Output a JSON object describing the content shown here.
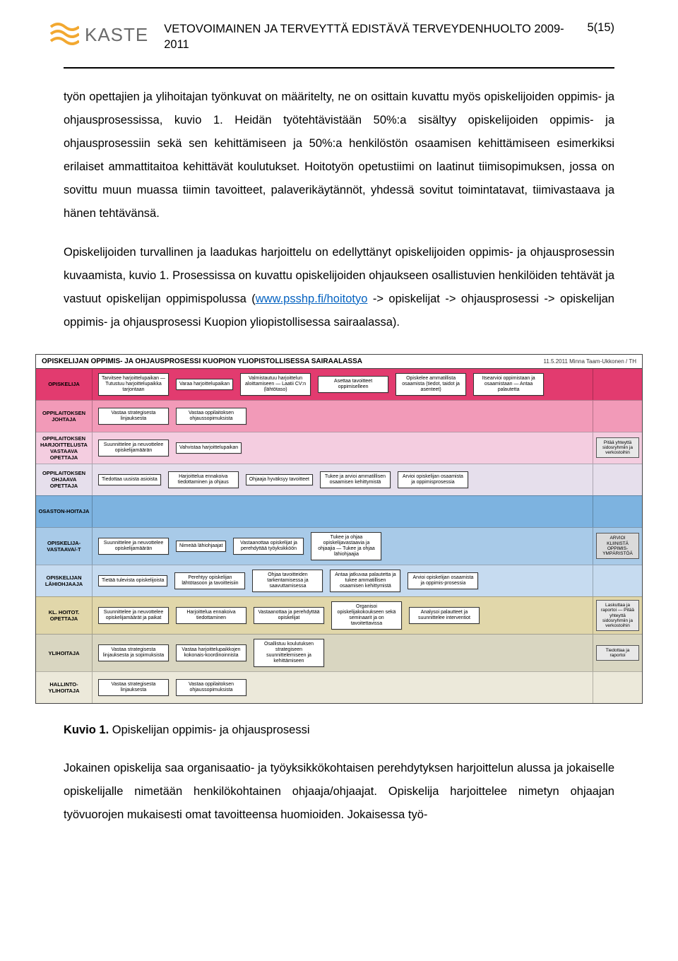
{
  "header": {
    "logo_text": "KASTE",
    "title_line": "VETOVOIMAINEN JA TERVEYTTÄ EDISTÄVÄ TERVEYDENHUOLTO 2009-2011",
    "page_num": "5(15)"
  },
  "paragraphs": {
    "p1": "työn opettajien ja ylihoitajan työnkuvat on määritelty, ne on osittain kuvattu myös opiskelijoiden oppimis- ja ohjausprosessissa, kuvio 1. Heidän työtehtävistään 50%:a sisältyy opiskelijoiden oppimis- ja ohjausprosessiin sekä sen kehittämiseen ja 50%:a henkilöstön osaamisen kehittämiseen esimerkiksi erilaiset ammattitaitoa kehittävät koulutukset. Hoitotyön opetustiimi on laatinut tiimisopimuksen, jossa on sovittu muun muassa tiimin tavoitteet, palaverikäytännöt, yhdessä sovitut toimintatavat, tiimivastaava ja hänen tehtävänsä.",
    "p2_part1": "Opiskelijoiden turvallinen ja laadukas harjoittelu on edellyttänyt opiskelijoiden oppimis- ja ohjausprosessin kuvaamista, kuvio 1. Prosessissa on kuvattu opiskelijoiden ohjaukseen osallistuvien henkilöiden tehtävät ja vastuut opiskelijan oppimispolussa (",
    "p2_link_text": "www.psshp.fi/hoitotyo",
    "p2_link_href": "http://www.psshp.fi/hoitotyo",
    "p2_part2": " -> opiskelijat -> ohjausprosessi -> opiskelijan oppimis- ja ohjausprosessi Kuopion yliopistollisessa sairaalassa).",
    "p3": "Jokainen opiskelija saa organisaatio- ja työyksikkökohtaisen perehdytyksen harjoittelun alussa ja jokaiselle opiskelijalle nimetään henkilökohtainen ohjaaja/ohjaajat. Opiskelija harjoittelee nimetyn ohjaajan työvuorojen mukaisesti omat tavoitteensa huomioiden. Jokaisessa työ-"
  },
  "figure_caption": {
    "label": "Kuvio 1.",
    "text": " Opiskelijan oppimis- ja ohjausprosessi"
  },
  "chart": {
    "title": "OPISKELIJAN OPPIMIS- JA OHJAUSPROSESSI KUOPION YLIOPISTOLLISESSA SAIRAALASSA",
    "date": "11.5.2011 Minna Taam-Ukkonen / TH",
    "right_end_label": "ARVIOI KLIINISTÄ OPPIMIS-YMPÄRISTÖÄ",
    "lanes": [
      {
        "label": "OPISKELIJA",
        "color": "#e23b6f",
        "nodes": [
          "Tarvitsee harjoittelupaikan — Tutustuu harjoittelupaikka tarjontaan",
          "Varaa harjoittelupaikan",
          "Valmistautuu harjoittelun aloittamiseen — Laatii CV:n (lähtötaso)",
          "Asettaa tavoitteet oppimiselleen",
          "Opiskelee ammatillista osaamista (tiedot, taidot ja asenteet)",
          "Itsearvioi oppimistaan ja osaamistaan — Antaa palautetta"
        ],
        "right": ""
      },
      {
        "label": "OPPILAITOKSEN JOHTAJA",
        "color": "#f29ab8",
        "nodes": [
          "Vastaa strategisesta linjauksesta",
          "Vastaa oppilaitoksen ohjaussopimuksista"
        ],
        "right": ""
      },
      {
        "label": "OPPILAITOKSEN HARJOITTELUSTA VASTAAVA OPETTAJA",
        "color": "#f4cde0",
        "nodes": [
          "Suunnittelee ja neuvottelee opiskelijamäärän",
          "Vahvistaa harjoittelupaikan"
        ],
        "right": "Pitää yhteyttä sidosryhmiin ja verkostoihin"
      },
      {
        "label": "OPPILAITOKSEN OHJAAVA OPETTAJA",
        "color": "#e6dfec",
        "nodes": [
          "Tiedottaa uusista asioista",
          "Harjoittelua ennakoiva tiedottaminen ja ohjaus",
          "Ohjaaja hyväksyy tavoitteet",
          "Tukee ja arvioi ammatillisen osaamisen kehittymistä",
          "Arvioi opiskelijan osaamista ja oppimisprosessia"
        ],
        "right": ""
      },
      {
        "label": "OSASTON-HOITAJA",
        "color": "#7db3e0",
        "nodes": [],
        "right": ""
      },
      {
        "label": "OPISKELIJA-VASTAAVA/-T",
        "color": "#a8cae8",
        "nodes": [
          "Suunnittelee ja neuvottelee opiskelijamäärän",
          "Nimeää lähiohjaajat",
          "Vastaanottaa opiskelijat ja perehdyttää työyksikköön",
          "Tukee ja ohjaa opiskelijavastaavia ja ohjaajia — Tukee ja ohjaa lähiohjaajia"
        ],
        "right": ""
      },
      {
        "label": "OPISKELIJAN LÄHIOHJAAJA",
        "color": "#c6dbf0",
        "nodes": [
          "Tietää tulevista opiskelijoista",
          "Perehtyy opiskelijan lähtötasoon ja tavoitteisiin",
          "Ohjaa tavoitteiden tarkentamisessa ja saavuttamisessa",
          "Antaa jatkuvaa palautetta ja tukee ammatillisen osaamisen kehittymistä",
          "Arvioi opiskelijan osaamista ja oppimis-prosessia"
        ],
        "right": ""
      },
      {
        "label": "KL. HOITOT. OPETTAJA",
        "color": "#e1d7aa",
        "nodes": [
          "Suunnittelee ja neuvottelee opiskelijamäärät ja paikat",
          "Harjoittelua ennakoiva tiedottaminen",
          "Vastaanottaa ja perehdyttää opiskelijat",
          "Organisoi opiskelijakokoukseen sekä seminaarit ja on tavoitettavissa",
          "Analysoi palautteet ja suunnittelee interventiot"
        ],
        "right": "Laskuttaa ja raportoi — Pitää yhteyttä sidosryhmiin ja verkostoihin"
      },
      {
        "label": "YLIHOITAJA",
        "color": "#d9d6c1",
        "nodes": [
          "Vastaa strategisesta linjauksesta ja sopimuksista",
          "Vastaa harjoittelupaikkojen kokonais-koordinoinnista",
          "Osallistuu koulutuksen strategiseen suunnittelemiseen ja kehittämiseen"
        ],
        "right": "Tiedottaa ja raportoi"
      },
      {
        "label": "HALLINTO-YLIHOITAJA",
        "color": "#ece9da",
        "nodes": [
          "Vastaa strategisesta linjauksesta",
          "Vastaa oppilaitoksen ohjaussopimuksista"
        ],
        "right": ""
      }
    ]
  },
  "logo": {
    "stroke_color": "#f2a830",
    "text_color": "#6b6b6b"
  }
}
